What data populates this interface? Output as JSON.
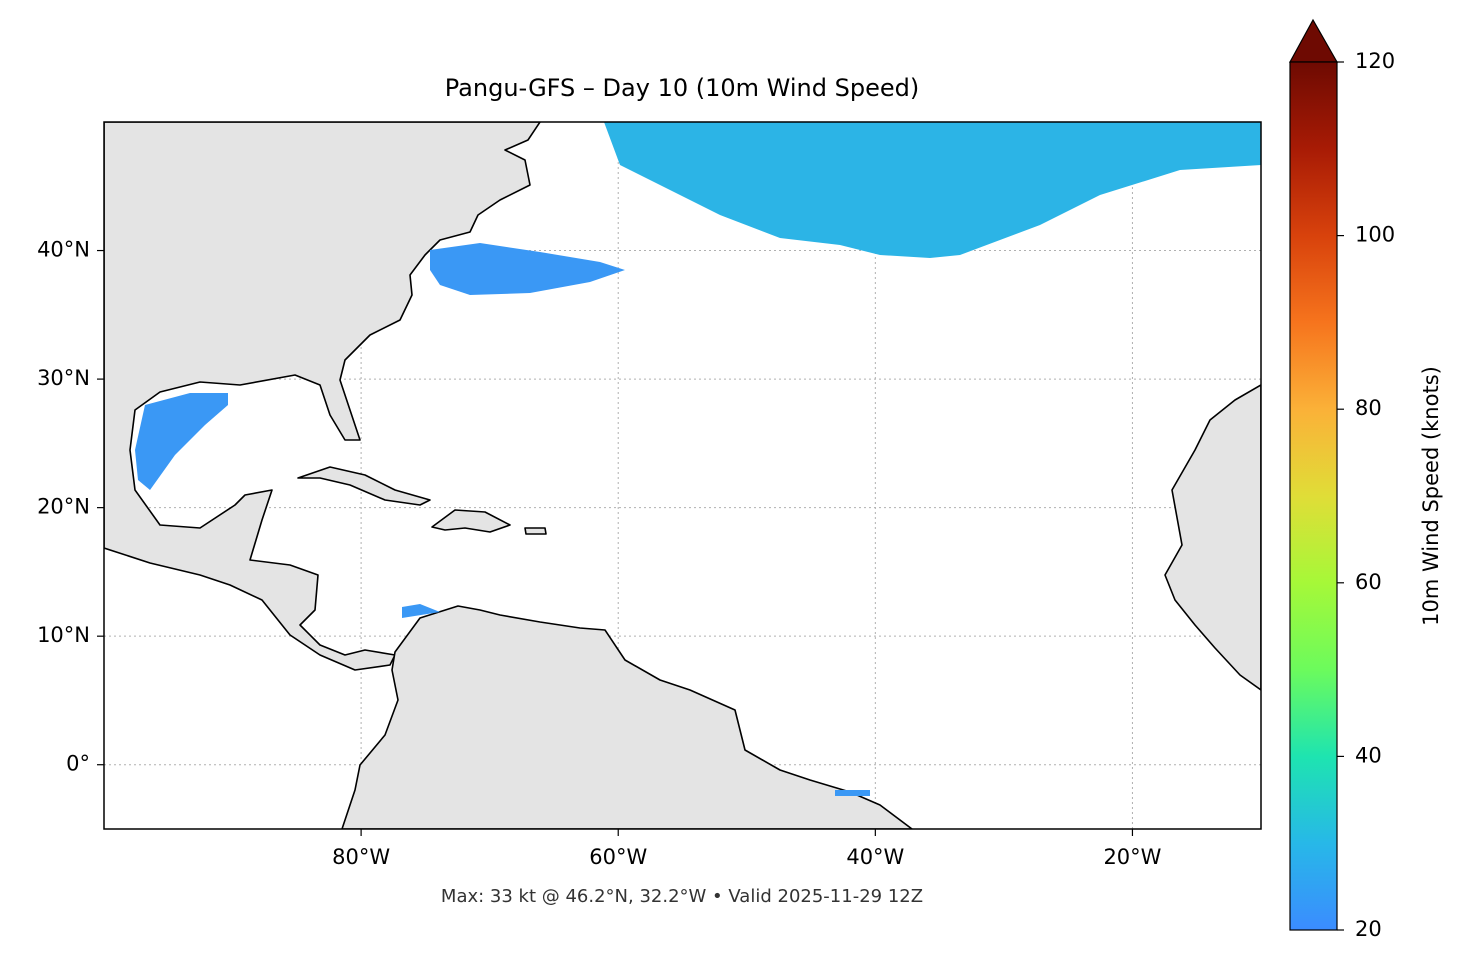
{
  "chart_data": {
    "type": "map",
    "title": "Pangu-GFS – Day 10 (10m Wind Speed)",
    "footnote": "Max: 33 kt @ 46.2°N, 32.2°W • Valid 2025-11-29 12Z",
    "xlim": [
      -100,
      -10
    ],
    "ylim": [
      -5,
      50
    ],
    "xticks": [
      {
        "value": -80,
        "label": "80°W"
      },
      {
        "value": -60,
        "label": "60°W"
      },
      {
        "value": -40,
        "label": "40°W"
      },
      {
        "value": -20,
        "label": "20°W"
      }
    ],
    "yticks": [
      {
        "value": 0,
        "label": "0°"
      },
      {
        "value": 10,
        "label": "10°N"
      },
      {
        "value": 20,
        "label": "20°N"
      },
      {
        "value": 30,
        "label": "30°N"
      },
      {
        "value": 40,
        "label": "40°N"
      }
    ],
    "grid": true,
    "colorbar": {
      "label": "10m Wind Speed (knots)",
      "lim": [
        20,
        120
      ],
      "ticks": [
        20,
        40,
        60,
        80,
        100,
        120
      ],
      "colors": [
        "#3b8cff",
        "#27b8e8",
        "#1ee4b0",
        "#6cfb5c",
        "#a6f838",
        "#e0dd37",
        "#fbb138",
        "#f6741d",
        "#d8420c",
        "#a81b05",
        "#6e0a02"
      ]
    }
  }
}
